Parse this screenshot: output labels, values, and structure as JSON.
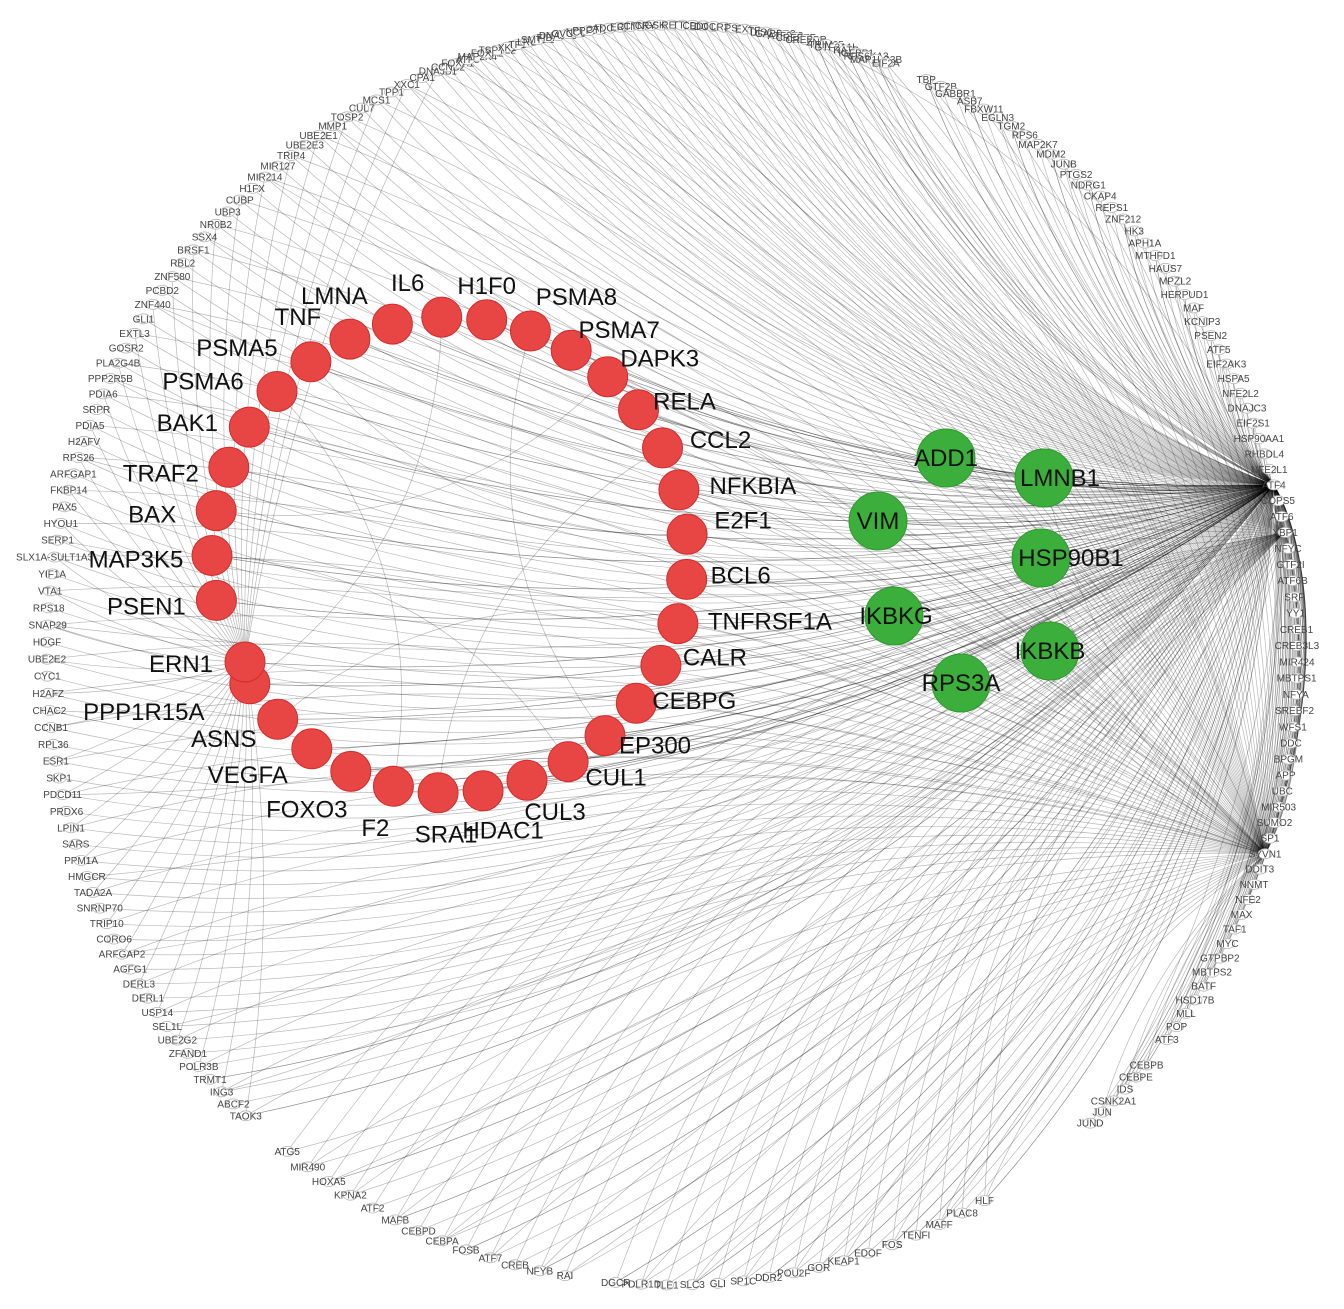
{
  "colors": {
    "red_node": "#e84545",
    "green_node": "#3cae3c",
    "edge": "#000000",
    "outer_node_stroke": "#b9b9b9"
  },
  "hub_nodes": [
    "ATF4",
    "XBP1",
    "SYVN1",
    "ERN1"
  ],
  "red_nodes": [
    "IL6",
    "H1F0",
    "PSMA8",
    "PSMA7",
    "DAPK3",
    "RELA",
    "CCL2",
    "NFKBIA",
    "E2F1",
    "BCL6",
    "TNFRSF1A",
    "CALR",
    "CEBPG",
    "EP300",
    "CUL1",
    "CUL3",
    "HDAC1",
    "SRA1",
    "F2",
    "FOXO3",
    "VEGFA",
    "ASNS",
    "PPP1R15A",
    "ERN1",
    "PSEN1",
    "MAP3K5",
    "BAX",
    "TRAF2",
    "BAK1",
    "PSMA6",
    "PSMA5",
    "TNF",
    "LMNA"
  ],
  "green_nodes": [
    "ADD1",
    "LMNB1",
    "VIM",
    "HSP90B1",
    "IKBKG",
    "IKBKB",
    "RPS3A"
  ],
  "outer_nodes_right": [
    "TBP",
    "GTF2B",
    "GABBR1",
    "ASB7",
    "FBXW11",
    "EGLN3",
    "TGM2",
    "RPS6",
    "MAP2K7",
    "MDM2",
    "JUNB",
    "PTGS2",
    "NDRG1",
    "CKAP4",
    "REPS1",
    "ZNF212",
    "HK3",
    "APH1A",
    "MTHFD1",
    "HAUS7",
    "MPZL2",
    "HERPUD1",
    "MAF",
    "KCNIP3",
    "PSEN2",
    "ATF5",
    "EIF2AK3",
    "HSPA5",
    "NFE2L2",
    "DNAJC3",
    "EIF2S1",
    "HSP90AA1",
    "RHBDL4",
    "NFE2L1",
    "ATF4",
    "COPS5",
    "ATF6",
    "XBP1",
    "NFYC",
    "GTF2I",
    "ATF6B",
    "SRF",
    "YY1",
    "CREB1",
    "CREB3L3",
    "MIR424",
    "MBTPS1",
    "NFYA",
    "SREBF2",
    "WFS1",
    "DDC",
    "BPGM",
    "APP",
    "UBC",
    "MIR503",
    "SUMO2",
    "SP1",
    "SYVN1",
    "DDIT3",
    "NNMT",
    "NFE2",
    "MAX",
    "TAF1",
    "MYC",
    "GTPBP2",
    "MBTPS2",
    "BATF",
    "HSD17B",
    "MLL",
    "POP",
    "ATF3",
    "FOS",
    "CEBPB",
    "CEBPE",
    "IDS",
    "CSNK2A1",
    "JUN",
    "JUND"
  ],
  "outer_nodes_bottom": [
    "HLF",
    "PLAC8",
    "MAFF",
    "TENFI",
    "FOS",
    "EDOF",
    "KEAP1",
    "GOR",
    "POU2F",
    "DDR2",
    "SP1C",
    "GLI",
    "SLC3",
    "TLE1",
    "PDLR1D",
    "DGCR",
    "ZNF",
    "RAI",
    "NFYB",
    "CREB",
    "ATF7",
    "FOSB",
    "CEBPA",
    "CEBPD",
    "MAFB",
    "ATF2",
    "KPNA2",
    "HOXA5",
    "MIR490",
    "ATG5"
  ],
  "outer_nodes_left": [
    "TAOK3",
    "ABCF2",
    "ING3",
    "TRMT1",
    "POLR3B",
    "ZFAND1",
    "UBE2G2",
    "SEL1L",
    "USP14",
    "DERL1",
    "DERL3",
    "AGFG1",
    "ARFGAP2",
    "CORO6",
    "TRIP10",
    "SNRNP70",
    "TADA2A",
    "HMGCR",
    "PPM1A",
    "SARS",
    "LPIN1",
    "PRDX6",
    "PDCD11",
    "SKP1",
    "ESR1",
    "RPL36",
    "CCNB1",
    "CHAC2",
    "H2AFZ",
    "CYC1",
    "UBE2E2",
    "HDGF",
    "SNAP29",
    "RPS18",
    "VTA1",
    "YIF1A",
    "SLX1A-SULT1A3",
    "SERP1",
    "HYOU1",
    "PAX5",
    "FKBP14",
    "ARFGAP1",
    "RPS26",
    "H2AFV",
    "PDIA5",
    "SRPR",
    "PDIA6",
    "PPP2R5B",
    "PLA2G4B",
    "GOSR2",
    "EXTL3",
    "GLI1",
    "ZNF440",
    "PCBD2",
    "ZNF580",
    "RBL2",
    "BRSF1",
    "SSX4",
    "NR0B2",
    "UBP3",
    "CUBP",
    "H1FX",
    "MIR214",
    "MIR127",
    "TRIP4",
    "UBE2E3",
    "UBE2E1",
    "MMP1",
    "TOSP2",
    "CUL7",
    "MCS1",
    "TPP1",
    "XXC1",
    "CPA1",
    "DNAJB1"
  ],
  "outer_nodes_top": [
    "CCNB2",
    "FOXA1",
    "ATF8",
    "MAP2K4",
    "FOXA2",
    "TSPYL2",
    "XK1",
    "TF1",
    "LRG",
    "SMTB1",
    "FIBP",
    "DNAJB9",
    "OVOL1",
    "NCL2",
    "PPP1R",
    "CTN1",
    "ADCR1",
    "ER2",
    "CTNF",
    "CTNPB",
    "CRYL1",
    "GSK3A",
    "REB",
    "TTR",
    "CD5",
    "EDC1",
    "DOC106",
    "LR3C",
    "PS2",
    "EX2",
    "TR",
    "DISC1",
    "GABBR2",
    "ATF2F2",
    "CREBZF",
    "CREBBP",
    "ZNF",
    "TRIM25",
    "GTF2A1L",
    "RATB",
    "IGFBP1",
    "RPS6KA3",
    "MAP1LC3B",
    "EIF2A"
  ]
}
